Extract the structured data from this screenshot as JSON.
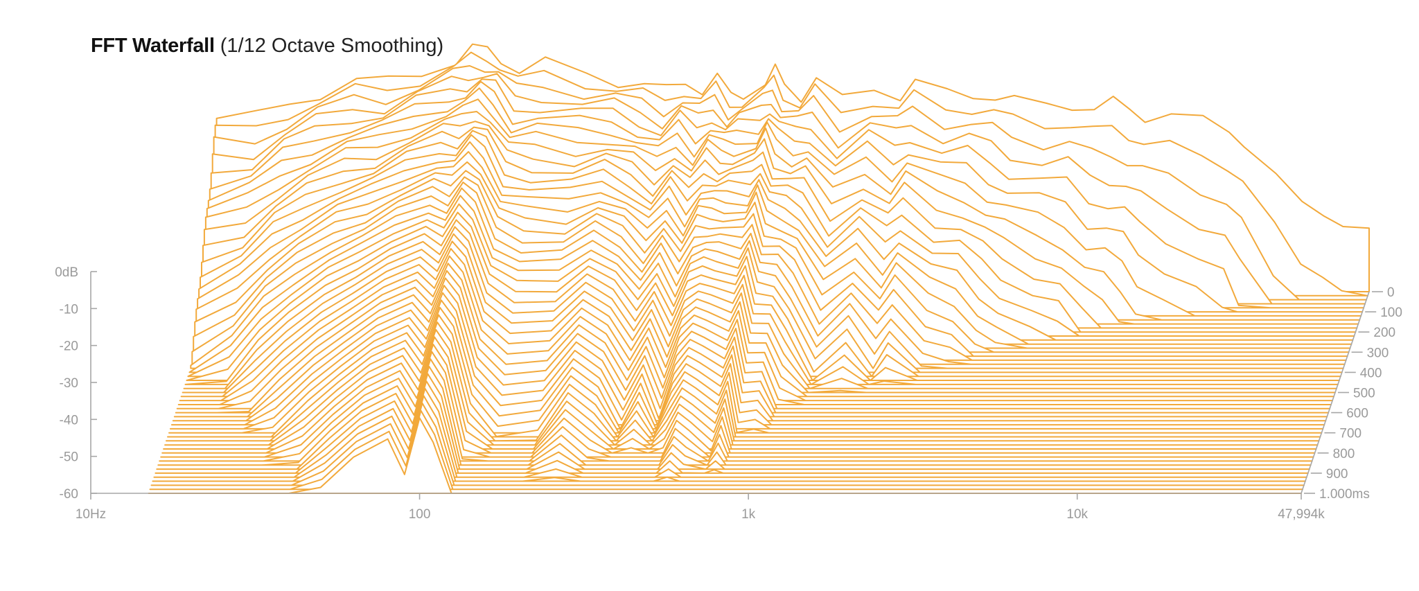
{
  "chart_data": {
    "type": "waterfall",
    "title": "FFT Waterfall",
    "subtitle": "(1/12 Octave Smoothing)",
    "x_axis": {
      "scale": "log",
      "range": [
        10,
        47994
      ],
      "ticks": [
        10,
        100,
        1000,
        10000,
        47994
      ],
      "tick_labels": [
        "10Hz",
        "100",
        "1k",
        "10k",
        "47,994k"
      ]
    },
    "y_axis": {
      "range": [
        -60,
        0
      ],
      "ticks": [
        0,
        -10,
        -20,
        -30,
        -40,
        -50,
        -60
      ],
      "tick_labels": [
        "0dB",
        "-10",
        "-20",
        "-30",
        "-40",
        "-50",
        "-60"
      ]
    },
    "z_axis": {
      "range": [
        0,
        1000
      ],
      "ticks": [
        0,
        100,
        200,
        300,
        400,
        500,
        600,
        700,
        800,
        900,
        1000
      ],
      "tick_labels": [
        "0",
        "100",
        "200",
        "300",
        "400",
        "500",
        "600",
        "700",
        "800",
        "900",
        "1.000ms"
      ]
    },
    "line_color": "#f2a93b",
    "slice_count": 50,
    "slice_step_ms": 20,
    "initial_spectrum": {
      "freq": [
        15,
        20,
        25,
        31,
        40,
        50,
        63,
        80,
        90,
        100,
        110,
        125,
        150,
        200,
        250,
        300,
        350,
        400,
        450,
        500,
        550,
        600,
        700,
        750,
        800,
        900,
        1000,
        1200,
        1500,
        1800,
        2000,
        2500,
        3000,
        3500,
        4000,
        5000,
        6000,
        7000,
        8000,
        9000,
        10000,
        12000,
        15000,
        18000,
        20000,
        25000,
        30000,
        35000,
        40000,
        47994
      ],
      "db": [
        -13.1,
        -13.1,
        -8.7,
        -6.0,
        -3.4,
        -3.4,
        -0.2,
        2.7,
        5.1,
        5.4,
        3.8,
        -0.6,
        1.3,
        -0.6,
        -2.6,
        -4.5,
        -5.9,
        -2.6,
        -5.1,
        -2.6,
        -7.2,
        -5.9,
        -3.4,
        -0.6,
        -3.9,
        -6.5,
        -2.6,
        -8.7,
        -4.5,
        -6.5,
        -4.0,
        -6.5,
        -5.9,
        -7.2,
        -9.0,
        -9.4,
        -8.7,
        -10.9,
        -9.3,
        -10.0,
        -12.2,
        -13.1,
        -14.0,
        -15.2,
        -19.6,
        -30.0,
        -36.3,
        -37.4,
        -42.2,
        -45.0
      ]
    },
    "decay_slope_db_per_ms": [
      0.12,
      0.1,
      0.085,
      0.075,
      0.065,
      0.055,
      0.05,
      0.048,
      0.06,
      0.045,
      0.05,
      0.07,
      0.085,
      0.08,
      0.06,
      0.065,
      0.08,
      0.07,
      0.085,
      0.07,
      0.055,
      0.06,
      0.07,
      0.065,
      0.08,
      0.075,
      0.1,
      0.12,
      0.11,
      0.13,
      0.12,
      0.14,
      0.15,
      0.17,
      0.18,
      0.2,
      0.22,
      0.25,
      0.28,
      0.3,
      0.32,
      0.35,
      0.4,
      0.45,
      0.5,
      0.6,
      0.7,
      0.8,
      0.9,
      1.0
    ],
    "noise_floor_db": -60,
    "grid": false,
    "legend": "none"
  }
}
